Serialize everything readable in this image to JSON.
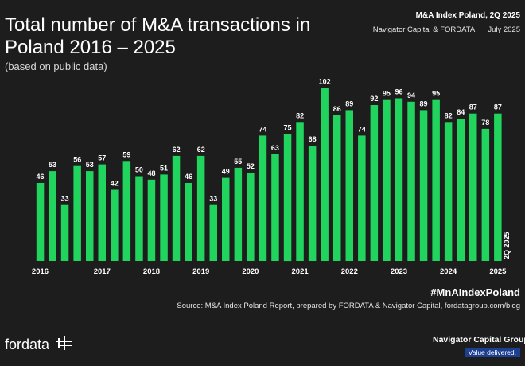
{
  "header": {
    "title": "Total number of M&A transactions in Poland 2016 – 2025",
    "subtitle": "(based on public data)",
    "report_title": "M&A Index Poland, 2Q 2025",
    "report_authors": "Navigator Capital & FORDATA",
    "report_date": "July 2025"
  },
  "footer": {
    "hashtag": "#MnAIndexPoland",
    "source": "Source: M&A Index Poland Report, prepared by FORDATA & Navigator Capital, fordatagroup.com/blog",
    "brand": "fordata",
    "partner_name": "Navigator Capital Group",
    "partner_tagline": "Value delivered."
  },
  "chart_data": {
    "type": "bar",
    "bar_color": "#20d45d",
    "background_color": "#1d1d1d",
    "grid": false,
    "ylim": [
      0,
      105
    ],
    "values": [
      46,
      53,
      33,
      56,
      53,
      57,
      42,
      59,
      50,
      48,
      51,
      62,
      46,
      62,
      33,
      49,
      55,
      52,
      74,
      63,
      75,
      82,
      68,
      102,
      86,
      89,
      74,
      92,
      95,
      96,
      94,
      89,
      95,
      82,
      84,
      87,
      78,
      87
    ],
    "year_labels": [
      "2016",
      "2017",
      "2018",
      "2019",
      "2020",
      "2021",
      "2022",
      "2023",
      "2024",
      "2025"
    ],
    "year_label_positions": [
      0,
      5,
      9,
      13,
      17,
      21,
      25,
      29,
      33,
      37
    ],
    "last_bar_label": "2Q 2025"
  }
}
